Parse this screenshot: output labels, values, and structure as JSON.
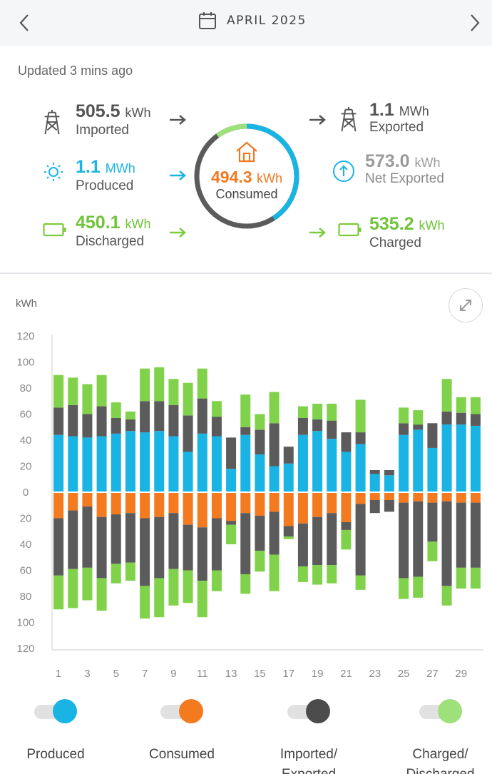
{
  "header": {
    "month": "APRIL 2025"
  },
  "summary": {
    "updated": "Updated 3 mins ago",
    "imported": {
      "value": "505.5",
      "unit": "kWh",
      "label": "Imported"
    },
    "exported": {
      "value": "1.1",
      "unit": "MWh",
      "label": "Exported"
    },
    "produced": {
      "value": "1.1",
      "unit": "MWh",
      "label": "Produced"
    },
    "net_exported": {
      "value": "573.0",
      "unit": "kWh",
      "label": "Net Exported"
    },
    "discharged": {
      "value": "450.1",
      "unit": "kWh",
      "label": "Discharged"
    },
    "charged": {
      "value": "535.2",
      "unit": "kWh",
      "label": "Charged"
    },
    "consumed": {
      "value": "494.3",
      "unit": "kWh",
      "label": "Consumed"
    }
  },
  "colors": {
    "produced": "#19b4e4",
    "consumed": "#f47a20",
    "grid": "#5b5b5b",
    "battery": "#80d24a",
    "battery_light": "#9ee07a"
  },
  "legend": [
    {
      "label": "Produced",
      "color": "#19b4e4"
    },
    {
      "label": "Consumed",
      "color": "#f47a20"
    },
    {
      "label": "Imported/ Exported",
      "color": "#4c4c4c"
    },
    {
      "label": "Charged/ Discharged",
      "color": "#9ee07a"
    }
  ],
  "chart_data": {
    "type": "bar",
    "ylabel": "kWh",
    "ylim": [
      -120,
      120
    ],
    "y_ticks": [
      120,
      100,
      80,
      60,
      40,
      20,
      0,
      20,
      40,
      60,
      80,
      100,
      120
    ],
    "x_tick_labels": [
      "1",
      "3",
      "5",
      "7",
      "9",
      "11",
      "13",
      "15",
      "17",
      "19",
      "21",
      "23",
      "25",
      "27",
      "29"
    ],
    "categories": [
      1,
      2,
      3,
      4,
      5,
      6,
      7,
      8,
      9,
      10,
      11,
      12,
      13,
      14,
      15,
      16,
      17,
      18,
      19,
      20,
      21,
      22,
      23,
      24,
      25,
      26,
      27,
      28,
      29,
      30
    ],
    "series": [
      {
        "name": "Produced",
        "values": [
          44,
          43,
          42,
          43,
          45,
          47,
          46,
          47,
          43,
          31,
          45,
          43,
          18,
          44,
          29,
          20,
          22,
          44,
          47,
          41,
          31,
          37,
          14,
          13,
          44,
          48,
          34,
          52,
          52,
          51
        ]
      },
      {
        "name": "Exported",
        "values": [
          21,
          24,
          18,
          23,
          12,
          9,
          24,
          23,
          24,
          28,
          27,
          15,
          24,
          6,
          19,
          33,
          13,
          13,
          9,
          14,
          15,
          9,
          3,
          4,
          9,
          4,
          19,
          10,
          9,
          9
        ]
      },
      {
        "name": "Charged",
        "values": [
          25,
          21,
          23,
          24,
          12,
          6,
          25,
          26,
          20,
          25,
          23,
          12,
          0,
          25,
          12,
          24,
          0,
          9,
          12,
          13,
          0,
          25,
          0,
          0,
          12,
          11,
          0,
          25,
          12,
          13
        ]
      },
      {
        "name": "Consumed",
        "values": [
          -20,
          -14,
          -11,
          -19,
          -17,
          -16,
          -20,
          -19,
          -16,
          -25,
          -27,
          -20,
          -22,
          -16,
          -18,
          -15,
          -26,
          -24,
          -19,
          -16,
          -23,
          -9,
          -6,
          -6,
          -8,
          -7,
          -8,
          -7,
          -8,
          -8
        ]
      },
      {
        "name": "Imported",
        "values": [
          -44,
          -45,
          -47,
          -47,
          -38,
          -38,
          -52,
          -47,
          -43,
          -35,
          -41,
          -40,
          -3,
          -47,
          -27,
          -33,
          -8,
          -33,
          -37,
          -40,
          -6,
          -55,
          -10,
          -9,
          -58,
          -58,
          -30,
          -65,
          -50,
          -50
        ]
      },
      {
        "name": "Discharged",
        "values": [
          -26,
          -30,
          -25,
          -25,
          -15,
          -14,
          -25,
          -30,
          -28,
          -25,
          -28,
          -16,
          -15,
          -15,
          -16,
          -28,
          -2,
          -12,
          -15,
          -14,
          -15,
          -11,
          0,
          0,
          -16,
          -16,
          -15,
          -15,
          -16,
          -16
        ]
      }
    ]
  }
}
